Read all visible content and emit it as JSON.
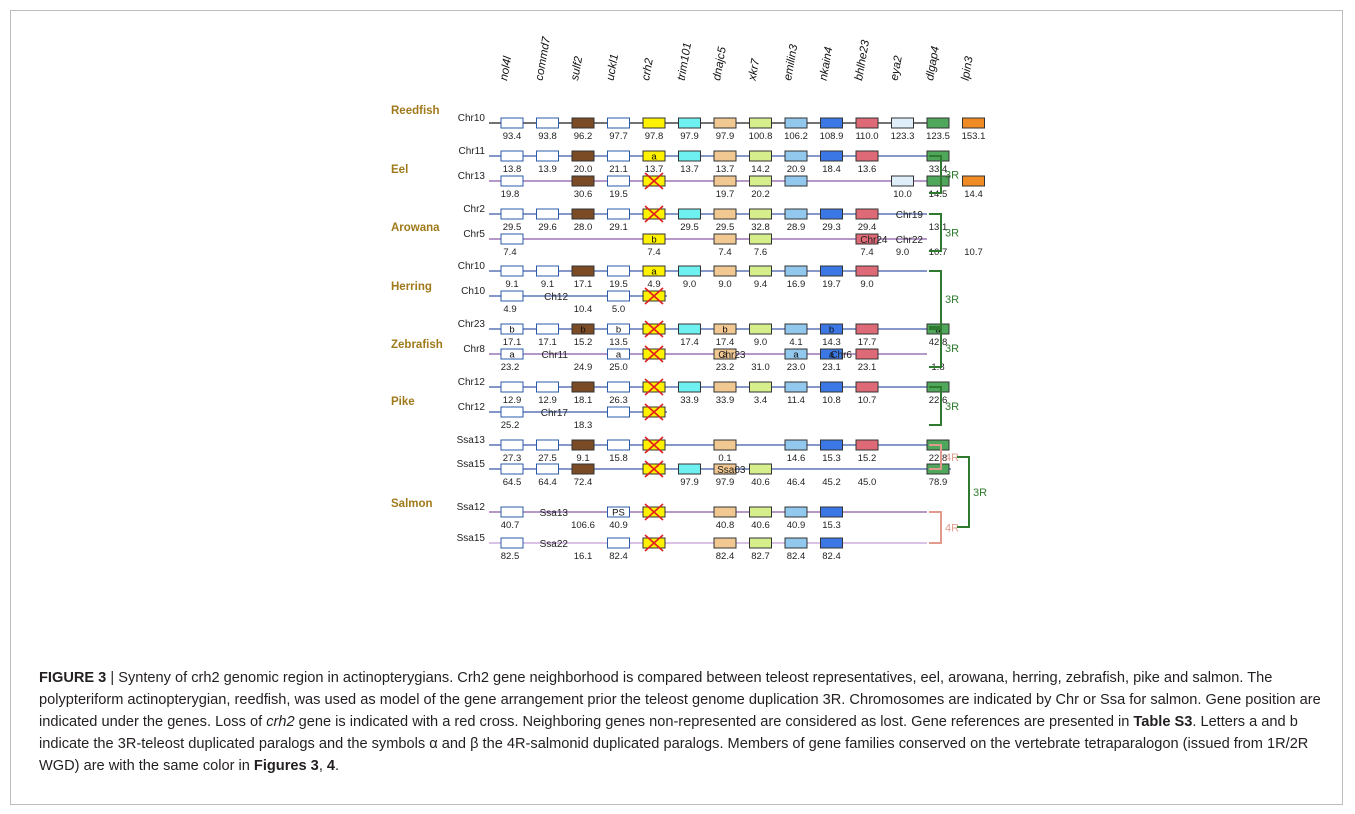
{
  "figure": {
    "genes": [
      "nol4l",
      "commd7",
      "sulf2",
      "uckl1",
      "crh2",
      "trim101",
      "dnajc5",
      "xkr7",
      "emilin3",
      "nkain4",
      "bhlhe23",
      "eya2",
      "dlgap4",
      "lpin3"
    ],
    "gene_colors": {
      "nol4l": "#ffffff",
      "commd7": "#ffffff",
      "sulf2": "#7a4b25",
      "uckl1": "#ffffff",
      "crh2": "#fff200",
      "trim101": "#6ff0f0",
      "dnajc5": "#f2c892",
      "xkr7": "#d7ee8c",
      "emilin3": "#92c7ee",
      "nkain4": "#3b78e6",
      "bhlhe23": "#dd6a76",
      "eya2": "#dfeef8",
      "dlgap4": "#4fa75c",
      "lpin3": "#ef8a25"
    },
    "gene_border_colors": {
      "nol4l": "#2b5aa8",
      "commd7": "#2b5aa8",
      "uckl1": "#2b5aa8"
    },
    "species": [
      {
        "name": "Reedfish",
        "rows": [
          {
            "chr": "Chr10",
            "line_color": "#1e1e1e",
            "genes": [
              [
                "nol4l",
                "93.4"
              ],
              [
                "commd7",
                "93.8"
              ],
              [
                "sulf2",
                "96.2"
              ],
              [
                "uckl1",
                "97.7"
              ],
              [
                "crh2",
                "97.8"
              ],
              [
                "trim101",
                "97.9"
              ],
              [
                "dnajc5",
                "97.9"
              ],
              [
                "xkr7",
                "100.8"
              ],
              [
                "emilin3",
                "106.2"
              ],
              [
                "nkain4",
                "108.9"
              ],
              [
                "bhlhe23",
                "110.0"
              ],
              [
                "eya2",
                "123.3"
              ],
              [
                "dlgap4",
                "123.5"
              ],
              [
                "lpin3",
                "153.1"
              ]
            ]
          }
        ]
      },
      {
        "name": "Eel",
        "rows": [
          {
            "chr": "Chr11",
            "line_color": "#3c5aa6",
            "genes": [
              [
                "nol4l",
                "13.8"
              ],
              [
                "commd7",
                "13.9"
              ],
              [
                "sulf2",
                "20.0"
              ],
              [
                "uckl1",
                "21.1"
              ],
              [
                "crh2",
                "13.7",
                "a"
              ],
              [
                "trim101",
                "13.7"
              ],
              [
                "dnajc5",
                "13.7"
              ],
              [
                "xkr7",
                "14.2"
              ],
              [
                "emilin3",
                "20.9"
              ],
              [
                "nkain4",
                "18.4"
              ],
              [
                "bhlhe23",
                "13.6"
              ],
              [
                "dlgap4",
                "33.4"
              ]
            ]
          },
          {
            "chr": "Chr13",
            "line_color": "#8b5aa8",
            "genes": [
              [
                "nol4l",
                "19.8",
                "",
                1
              ],
              [
                "sulf2",
                "30.6"
              ],
              [
                "uckl1",
                "19.5"
              ],
              [
                "crh2",
                "",
                "",
                0,
                "x"
              ],
              [
                "dnajc5",
                "19.7"
              ],
              [
                "xkr7",
                "20.2"
              ],
              [
                "emilin3",
                ""
              ],
              [
                "eya2",
                "10.0"
              ],
              [
                "dlgap4",
                "14.5"
              ],
              [
                "lpin3",
                "14.4"
              ]
            ]
          }
        ]
      },
      {
        "name": "Arowana",
        "rows": [
          {
            "chr": "Chr2",
            "line_color": "#3c5aa6",
            "genes": [
              [
                "nol4l",
                "29.5"
              ],
              [
                "commd7",
                "29.6"
              ],
              [
                "sulf2",
                "28.0"
              ],
              [
                "uckl1",
                "29.1"
              ],
              [
                "crh2",
                "",
                "",
                0,
                "x"
              ],
              [
                "trim101",
                "29.5"
              ],
              [
                "dnajc5",
                "29.5"
              ],
              [
                "xkr7",
                "32.8"
              ],
              [
                "emilin3",
                "28.9"
              ],
              [
                "nkain4",
                "29.3"
              ],
              [
                "bhlhe23",
                "29.4"
              ]
            ]
          },
          {
            "chr": "Chr5",
            "line_color": "#8b5aa8",
            "genes": [
              [
                "nol4l",
                "7.4",
                "",
                1
              ],
              [
                "crh2",
                "7.4",
                "b"
              ],
              [
                "dnajc5",
                "7.4"
              ],
              [
                "xkr7",
                "7.6"
              ],
              [
                "bhlhe23",
                "7.4"
              ]
            ]
          }
        ]
      },
      {
        "name": "Herring",
        "rows": [
          {
            "chr": "Chr10",
            "line_color": "#3c5aa6",
            "genes": [
              [
                "nol4l",
                "9.1"
              ],
              [
                "commd7",
                "9.1"
              ],
              [
                "sulf2",
                "17.1"
              ],
              [
                "uckl1",
                "19.5"
              ],
              [
                "crh2",
                "4.9",
                "a"
              ],
              [
                "trim101",
                "9.0"
              ],
              [
                "dnajc5",
                "9.0"
              ],
              [
                "xkr7",
                "9.4"
              ],
              [
                "emilin3",
                "16.9"
              ],
              [
                "nkain4",
                "19.7"
              ],
              [
                "bhlhe23",
                "9.0"
              ]
            ]
          },
          {
            "chr": "Ch10",
            "line_color": "#3c5aa6",
            "genes": [
              [
                "nol4l",
                "4.9",
                "",
                1
              ],
              [
                "uckl1",
                "5.0"
              ],
              [
                "crh2",
                "",
                "",
                0,
                "x"
              ]
            ]
          }
        ]
      },
      {
        "name": "Zebrafish",
        "rows": [
          {
            "chr": "Chr23",
            "line_color": "#3c5aa6",
            "genes": [
              [
                "nol4l",
                "17.1",
                "b"
              ],
              [
                "commd7",
                "17.1"
              ],
              [
                "sulf2",
                "15.2",
                "b"
              ],
              [
                "uckl1",
                "13.5",
                "b"
              ],
              [
                "crh2",
                "",
                "",
                0,
                "x"
              ],
              [
                "trim101",
                "17.4"
              ],
              [
                "dnajc5",
                "17.4",
                "b"
              ],
              [
                "xkr7",
                "9.0"
              ],
              [
                "emilin3",
                "4.1"
              ],
              [
                "nkain4",
                "14.3",
                "b"
              ],
              [
                "bhlhe23",
                "17.7"
              ],
              [
                "dlgap4",
                "42.8",
                "a"
              ]
            ]
          },
          {
            "chr": "Chr8",
            "line_color": "#8b5aa8",
            "genes": [
              [
                "nol4l",
                "23.2",
                "a",
                1
              ],
              [
                "uckl1",
                "25.0",
                "a"
              ],
              [
                "crh2",
                "",
                "",
                0,
                "x"
              ],
              [
                "dnajc5",
                "23.2",
                "a"
              ],
              [
                "emilin3",
                "23.0",
                "a"
              ],
              [
                "nkain4",
                "23.1",
                "a"
              ],
              [
                "bhlhe23",
                "23.1"
              ]
            ]
          }
        ]
      },
      {
        "name": "Pike",
        "rows": [
          {
            "chr": "Chr12",
            "line_color": "#3c5aa6",
            "genes": [
              [
                "nol4l",
                "12.9"
              ],
              [
                "commd7",
                "12.9"
              ],
              [
                "sulf2",
                "18.1"
              ],
              [
                "uckl1",
                "26.3"
              ],
              [
                "crh2",
                "",
                "",
                0,
                "x"
              ],
              [
                "trim101",
                "33.9"
              ],
              [
                "dnajc5",
                "33.9"
              ],
              [
                "xkr7",
                "3.4"
              ],
              [
                "emilin3",
                "11.4"
              ],
              [
                "nkain4",
                "10.8"
              ],
              [
                "bhlhe23",
                "10.7"
              ],
              [
                "dlgap4",
                "22.6"
              ]
            ]
          },
          {
            "chr": "Chr12",
            "line_color": "#3c5aa6",
            "genes": [
              [
                "nol4l",
                "25.2",
                "",
                1
              ],
              [
                "uckl1",
                ""
              ],
              [
                "crh2",
                "",
                "",
                0,
                "x"
              ]
            ]
          }
        ]
      },
      {
        "name": "Salmon",
        "rows": [
          {
            "chr": "Ssa13",
            "line_color": "#3c5aa6",
            "genes": [
              [
                "nol4l",
                "27.3"
              ],
              [
                "commd7",
                "27.5"
              ],
              [
                "sulf2",
                "9.1"
              ],
              [
                "uckl1",
                "15.8"
              ],
              [
                "crh2",
                "",
                "",
                0,
                "x"
              ],
              [
                "dnajc5",
                "0.1"
              ],
              [
                "emilin3",
                "14.6"
              ],
              [
                "nkain4",
                "15.3"
              ],
              [
                "bhlhe23",
                "15.2"
              ],
              [
                "dlgap4",
                "22.8"
              ]
            ]
          },
          {
            "chr": "Ssa15",
            "line_color": "#3c5aa6",
            "genes": [
              [
                "nol4l",
                "64.5"
              ],
              [
                "commd7",
                "64.4"
              ],
              [
                "sulf2",
                "72.4"
              ],
              [
                "crh2",
                "",
                "",
                0,
                "x"
              ],
              [
                "trim101",
                "97.9"
              ],
              [
                "dnajc5",
                "97.9"
              ],
              [
                "xkr7",
                "40.6"
              ],
              [
                "dlgap4",
                "78.9"
              ]
            ]
          },
          {
            "chr": "Ssa12",
            "line_color": "#8b5aa8",
            "genes": [
              [
                "nol4l",
                "40.7",
                "",
                1
              ],
              [
                "uckl1",
                "40.9",
                "PS"
              ],
              [
                "crh2",
                "",
                "",
                0,
                "x"
              ],
              [
                "dnajc5",
                "40.8"
              ],
              [
                "xkr7",
                "40.6"
              ],
              [
                "emilin3",
                "40.9"
              ],
              [
                "nkain4",
                "15.3"
              ]
            ]
          },
          {
            "chr": "Ssa15",
            "line_color": "#c39ed6",
            "genes": [
              [
                "nol4l",
                "82.5",
                "",
                1
              ],
              [
                "uckl1",
                "82.4"
              ],
              [
                "crh2",
                "",
                "",
                0,
                "x"
              ],
              [
                "dnajc5",
                "82.4"
              ],
              [
                "xkr7",
                "82.7"
              ],
              [
                "emilin3",
                "82.4"
              ],
              [
                "nkain4",
                "82.4"
              ]
            ]
          }
        ]
      }
    ],
    "extra_labels": [
      {
        "text": "Chr19",
        "gene": "dlgap4",
        "row": "Arowana-0",
        "kind": "chr"
      },
      {
        "text": "13.1",
        "gene": "dlgap4",
        "row": "Arowana-0",
        "kind": "pos"
      },
      {
        "text": "Chr22",
        "gene": "dlgap4",
        "row": "Arowana-1",
        "kind": "chr"
      },
      {
        "text": "10.7",
        "gene": "dlgap4",
        "row": "Arowana-1",
        "kind": "pos"
      },
      {
        "text": "10.7",
        "gene": "lpin3",
        "row": "Arowana-1",
        "kind": "pos"
      },
      {
        "text": "Chr24",
        "gene": "eya2",
        "row": "Arowana-1",
        "kind": "chr"
      },
      {
        "text": "9.0",
        "gene": "eya2",
        "row": "Arowana-1",
        "kind": "pos"
      },
      {
        "text": "Ch12",
        "gene": "sulf2",
        "row": "Herring-1",
        "kind": "chr"
      },
      {
        "text": "10.4",
        "gene": "sulf2",
        "row": "Herring-1",
        "kind": "pos"
      },
      {
        "text": "Chr11",
        "gene": "sulf2",
        "row": "Zebrafish-1",
        "kind": "chr"
      },
      {
        "text": "24.9",
        "gene": "sulf2",
        "row": "Zebrafish-1",
        "kind": "pos"
      },
      {
        "text": "Chr23",
        "gene": "xkr7",
        "row": "Zebrafish-1",
        "kind": "chr"
      },
      {
        "text": "31.0",
        "gene": "xkr7",
        "row": "Zebrafish-1",
        "kind": "pos"
      },
      {
        "text": "Chr6",
        "gene": "bhlhe23",
        "row": "Zebrafish-1",
        "kind": "chr"
      },
      {
        "text": "Chr17",
        "gene": "sulf2",
        "row": "Pike-1",
        "kind": "chr"
      },
      {
        "text": "18.3",
        "gene": "sulf2",
        "row": "Pike-1",
        "kind": "pos"
      },
      {
        "text": "Ssa03",
        "gene": "xkr7",
        "row": "Salmon-1",
        "kind": "chr"
      },
      {
        "text": "Ssa13",
        "gene": "sulf2",
        "row": "Salmon-2",
        "kind": "chr"
      },
      {
        "text": "106.6",
        "gene": "sulf2",
        "row": "Salmon-2",
        "kind": "pos"
      },
      {
        "text": "Ssa22",
        "gene": "sulf2",
        "row": "Salmon-3",
        "kind": "chr"
      },
      {
        "text": "16.1",
        "gene": "sulf2",
        "row": "Salmon-3",
        "kind": "pos"
      },
      {
        "text": "46.4",
        "gene": "emilin3",
        "row": "Salmon-1",
        "kind": "pos"
      },
      {
        "text": "45.2",
        "gene": "nkain4",
        "row": "Salmon-1",
        "kind": "pos"
      },
      {
        "text": "45.0",
        "gene": "bhlhe23",
        "row": "Salmon-1",
        "kind": "pos"
      },
      {
        "text": "1.8",
        "gene": "dlgap4",
        "row": "Zebrafish-1",
        "kind": "pos"
      }
    ],
    "duplication_labels": {
      "three_r": "3R",
      "four_r": "4R",
      "a": "a",
      "b": "b"
    }
  },
  "caption": {
    "label": "FIGURE 3",
    "separator": " | ",
    "text_1": "Synteny of crh2 genomic region in actinopterygians. Crh2 gene neighborhood is compared between teleost representatives, eel, arowana, herring, zebrafish, pike and salmon. The polypteriform actinopterygian, reedfish, was used as model of the gene arrangement prior the teleost genome duplication 3R. Chromosomes are indicated by Chr or Ssa for salmon. Gene position are indicated under the genes. Loss of ",
    "gene_italic": "crh2",
    "text_2": " gene is indicated with a red cross. Neighboring genes non-represented are considered as lost. Gene references are presented in ",
    "table_ref": "Table S3",
    "text_3": ". Letters a and b indicate the 3R-teleost duplicated paralogs and the symbols α and β the 4R-salmonid duplicated paralogs. Members of gene families conserved on the vertebrate tetraparalogon (issued from 1R/2R WGD) are with the same color in ",
    "figures_ref": "Figures 3",
    "text_4": ", ",
    "figures_ref_2": "4",
    "text_5": "."
  }
}
